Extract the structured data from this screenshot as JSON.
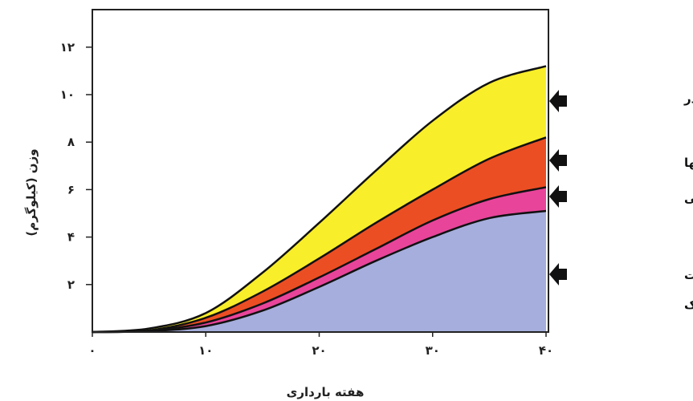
{
  "chart_data": {
    "type": "area",
    "stacked": true,
    "xlabel": "هفته بارداری",
    "ylabel": "وزن (کیلوگرم)",
    "xlim": [
      0,
      40
    ],
    "ylim": [
      0,
      12
    ],
    "xticks": [
      {
        "value": 0,
        "label": "۰"
      },
      {
        "value": 10,
        "label": "۱۰"
      },
      {
        "value": 20,
        "label": "۲۰"
      },
      {
        "value": 30,
        "label": "۳۰"
      },
      {
        "value": 40,
        "label": "۴۰"
      }
    ],
    "yticks": [
      {
        "value": 2,
        "label": "۲"
      },
      {
        "value": 4,
        "label": "۴"
      },
      {
        "value": 6,
        "label": "۶"
      },
      {
        "value": 8,
        "label": "۸"
      },
      {
        "value": 10,
        "label": "۱۰"
      },
      {
        "value": 12,
        "label": "۱۲"
      }
    ],
    "x": [
      0,
      5,
      10,
      15,
      20,
      25,
      30,
      35,
      40
    ],
    "cumulative_boundaries": [
      {
        "key": "fetus",
        "values": [
          0,
          0.04,
          0.25,
          0.9,
          1.9,
          3.0,
          4.0,
          4.8,
          5.1
        ]
      },
      {
        "key": "fluids",
        "values": [
          0,
          0.05,
          0.4,
          1.2,
          2.3,
          3.5,
          4.7,
          5.6,
          6.1
        ]
      },
      {
        "key": "uterus",
        "values": [
          0,
          0.07,
          0.6,
          1.7,
          3.1,
          4.6,
          6.0,
          7.3,
          8.2
        ]
      },
      {
        "key": "fat",
        "values": [
          0,
          0.15,
          0.8,
          2.5,
          4.6,
          6.8,
          8.9,
          10.5,
          11.2
        ]
      }
    ],
    "series": [
      {
        "key": "fetus",
        "name_lines": [
          "جنین، جفت",
          "مایع آمنیوتیک"
        ],
        "color": "#a5aedc"
      },
      {
        "key": "fluids",
        "name_lines": [
          "خون و مایعات بافتی"
        ],
        "color": "#e8449a"
      },
      {
        "key": "uterus",
        "name_lines": [
          "رحم و پستانها"
        ],
        "color": "#ec4e23"
      },
      {
        "key": "fat",
        "name_lines": [
          "ذخیره چربی مادر"
        ],
        "color": "#f9ee2a"
      }
    ],
    "legend_placement": "right",
    "grid": false
  }
}
